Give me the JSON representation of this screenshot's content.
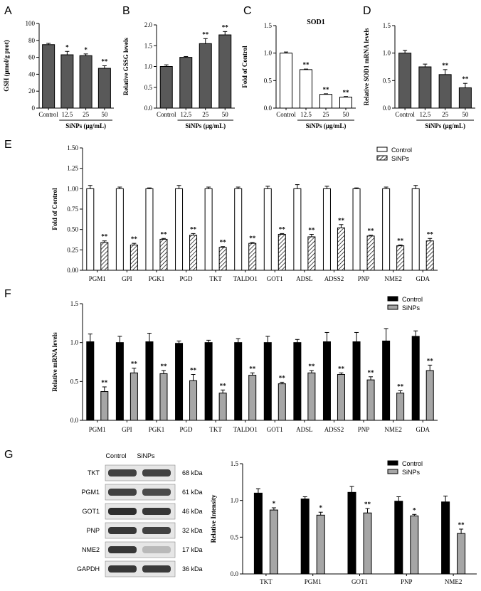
{
  "chart_data": [
    {
      "id": "A",
      "panel_label": "A",
      "type": "bar",
      "title": "",
      "ylabel": "GSH (μmol/g prot)",
      "xlabel": "SiNPs (μg/mL)",
      "ylim": [
        0,
        100
      ],
      "yticks": [
        0,
        20,
        40,
        60,
        80,
        100
      ],
      "categories": [
        "Control",
        "12.5",
        "25",
        "50"
      ],
      "xlabel_covers": [
        1,
        3
      ],
      "series": [
        {
          "values": [
            75,
            63,
            62,
            47
          ],
          "errors": [
            1.5,
            4,
            2,
            3
          ],
          "fill": "#595959",
          "pattern": "solid"
        }
      ],
      "annotations": [
        [
          "",
          "*",
          "*",
          "**"
        ]
      ]
    },
    {
      "id": "B",
      "panel_label": "B",
      "type": "bar",
      "title": "",
      "ylabel": "Relative GSSG levels",
      "xlabel": "SiNPs (μg/mL)",
      "ylim": [
        0,
        2.0
      ],
      "yticks": [
        0.0,
        0.5,
        1.0,
        1.5,
        2.0
      ],
      "categories": [
        "Control",
        "12.5",
        "25",
        "50"
      ],
      "xlabel_covers": [
        1,
        3
      ],
      "series": [
        {
          "values": [
            1.0,
            1.22,
            1.55,
            1.76
          ],
          "errors": [
            0.04,
            0.02,
            0.12,
            0.08
          ],
          "fill": "#595959",
          "pattern": "solid"
        }
      ],
      "annotations": [
        [
          "",
          "",
          "**",
          "**"
        ]
      ]
    },
    {
      "id": "C",
      "panel_label": "C",
      "type": "bar",
      "title": "SOD1",
      "ylabel": "Fold of Control",
      "xlabel": "SiNPs (μg/mL)",
      "ylim": [
        0,
        1.5
      ],
      "yticks": [
        0.0,
        0.5,
        1.0,
        1.5
      ],
      "categories": [
        "Control",
        "12.5",
        "25",
        "50"
      ],
      "xlabel_covers": [
        1,
        3
      ],
      "series": [
        {
          "values": [
            1.0,
            0.7,
            0.25,
            0.2
          ],
          "errors": [
            0.02,
            0.01,
            0.01,
            0.01
          ],
          "fill": "#ffffff",
          "pattern": "solid"
        }
      ],
      "annotations": [
        [
          "",
          "**",
          "**",
          "**"
        ]
      ]
    },
    {
      "id": "D",
      "panel_label": "D",
      "type": "bar",
      "title": "",
      "ylabel": "Relative SOD1 mRNA levels",
      "xlabel": "SiNPs (μg/mL)",
      "ylim": [
        0,
        1.5
      ],
      "yticks": [
        0.0,
        0.5,
        1.0,
        1.5
      ],
      "categories": [
        "Control",
        "12.5",
        "25",
        "50"
      ],
      "xlabel_covers": [
        1,
        3
      ],
      "series": [
        {
          "values": [
            1.0,
            0.75,
            0.61,
            0.37
          ],
          "errors": [
            0.05,
            0.05,
            0.09,
            0.08
          ],
          "fill": "#595959",
          "pattern": "solid"
        }
      ],
      "annotations": [
        [
          "",
          "",
          "**",
          "**"
        ]
      ]
    },
    {
      "id": "E",
      "panel_label": "E",
      "type": "bar",
      "title": "",
      "ylabel": "Fold of Control",
      "xlabel": "",
      "ylim": [
        0,
        1.5
      ],
      "yticks": [
        0.0,
        0.25,
        0.5,
        0.75,
        1.0,
        1.25,
        1.5
      ],
      "categories": [
        "PGM1",
        "GPI",
        "PGK1",
        "PGD",
        "TKT",
        "TALDO1",
        "GOT1",
        "ADSL",
        "ADSS2",
        "PNP",
        "NME2",
        "GDA"
      ],
      "legend": "top-right",
      "series": [
        {
          "name": "Control",
          "values": [
            1,
            1,
            1,
            1,
            1,
            1,
            1,
            1,
            1,
            1,
            1,
            1
          ],
          "errors": [
            0.04,
            0.02,
            0.01,
            0.04,
            0.02,
            0.02,
            0.03,
            0.05,
            0.03,
            0.01,
            0.02,
            0.04
          ],
          "fill": "#ffffff",
          "pattern": "solid"
        },
        {
          "name": "SiNPs",
          "values": [
            0.34,
            0.31,
            0.38,
            0.43,
            0.28,
            0.33,
            0.44,
            0.41,
            0.52,
            0.42,
            0.3,
            0.36
          ],
          "errors": [
            0.02,
            0.02,
            0.01,
            0.02,
            0.01,
            0.01,
            0.01,
            0.03,
            0.04,
            0.01,
            0.01,
            0.03
          ],
          "fill": "#ffffff",
          "pattern": "hatch"
        }
      ],
      "annotations": [
        [
          "",
          "",
          "",
          "",
          "",
          "",
          "",
          "",
          "",
          "",
          "",
          ""
        ],
        [
          "**",
          "**",
          "**",
          "**",
          "**",
          "**",
          "**",
          "**",
          "**",
          "**",
          "**",
          "**"
        ]
      ]
    },
    {
      "id": "F",
      "panel_label": "F",
      "type": "bar",
      "title": "",
      "ylabel": "Relative  mRNA levels",
      "xlabel": "",
      "ylim": [
        0,
        1.5
      ],
      "yticks": [
        0.0,
        0.5,
        1.0,
        1.5
      ],
      "categories": [
        "PGM1",
        "GPI",
        "PGK1",
        "PGD",
        "TKT",
        "TALDO1",
        "GOT1",
        "ADSL",
        "ADSS2",
        "PNP",
        "NME2",
        "GDA"
      ],
      "legend": "top-right",
      "series": [
        {
          "name": "Control",
          "values": [
            1.01,
            1.0,
            1.01,
            0.99,
            1.0,
            1.0,
            1.0,
            1.0,
            1.01,
            1.01,
            1.02,
            1.08
          ],
          "errors": [
            0.1,
            0.08,
            0.11,
            0.03,
            0.03,
            0.05,
            0.08,
            0.04,
            0.12,
            0.12,
            0.16,
            0.07
          ],
          "fill": "#000000",
          "pattern": "solid"
        },
        {
          "name": "SiNPs",
          "values": [
            0.37,
            0.61,
            0.6,
            0.51,
            0.35,
            0.58,
            0.47,
            0.61,
            0.59,
            0.52,
            0.35,
            0.64
          ],
          "errors": [
            0.06,
            0.06,
            0.04,
            0.08,
            0.04,
            0.03,
            0.02,
            0.03,
            0.02,
            0.04,
            0.03,
            0.07
          ],
          "fill": "#a6a6a6",
          "pattern": "solid"
        }
      ],
      "annotations": [
        [
          "",
          "",
          "",
          "",
          "",
          "",
          "",
          "",
          "",
          "",
          "",
          ""
        ],
        [
          "**",
          "**",
          "**",
          "**",
          "**",
          "**",
          "**",
          "**",
          "**",
          "**",
          "**",
          "**"
        ]
      ]
    },
    {
      "id": "G",
      "panel_label": "",
      "type": "bar",
      "title": "",
      "ylabel": "Relative Intensity",
      "xlabel": "",
      "ylim": [
        0,
        1.5
      ],
      "yticks": [
        0.0,
        0.5,
        1.0,
        1.5
      ],
      "categories": [
        "TKT",
        "PGM1",
        "GOT1",
        "PNP",
        "NME2"
      ],
      "legend": "top-right",
      "series": [
        {
          "name": "Control",
          "values": [
            1.1,
            1.02,
            1.11,
            0.99,
            0.98
          ],
          "errors": [
            0.06,
            0.03,
            0.08,
            0.06,
            0.08
          ],
          "fill": "#000000",
          "pattern": "solid"
        },
        {
          "name": "SiNPs",
          "values": [
            0.87,
            0.8,
            0.83,
            0.79,
            0.55
          ],
          "errors": [
            0.03,
            0.04,
            0.06,
            0.02,
            0.06
          ],
          "fill": "#a6a6a6",
          "pattern": "solid"
        }
      ],
      "annotations": [
        [
          "",
          "",
          "",
          "",
          ""
        ],
        [
          "*",
          "*",
          "**",
          "*",
          "**"
        ]
      ]
    }
  ],
  "blot": {
    "panel_label": "G",
    "lanes": [
      "Control",
      "SiNPs"
    ],
    "proteins": [
      "TKT",
      "PGM1",
      "GOT1",
      "PNP",
      "NME2",
      "GAPDH"
    ],
    "kda": [
      "68 kDa",
      "61 kDa",
      "46 kDa",
      "32 kDa",
      "17 kDa",
      "36 kDa"
    ],
    "intensity": [
      [
        0.85,
        0.85
      ],
      [
        0.85,
        0.8
      ],
      [
        0.95,
        0.9
      ],
      [
        0.9,
        0.85
      ],
      [
        0.9,
        0.25
      ],
      [
        0.9,
        0.88
      ]
    ]
  }
}
